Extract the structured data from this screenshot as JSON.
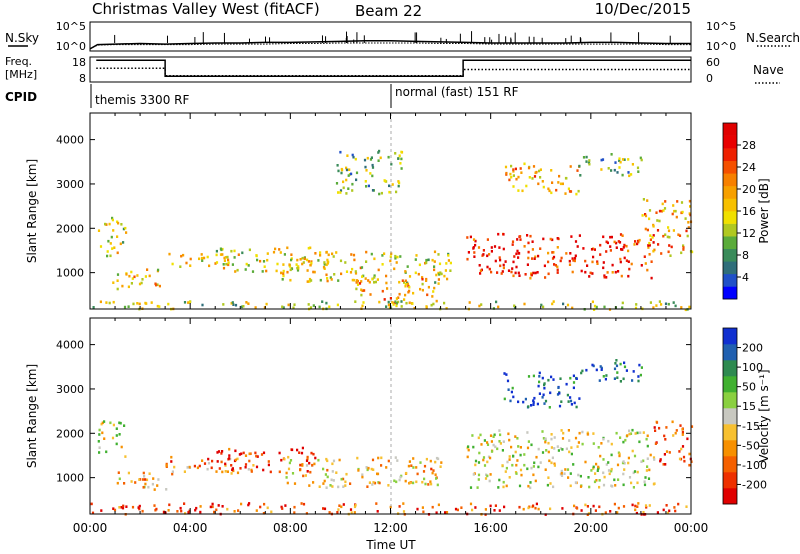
{
  "header": {
    "station": "Christmas Valley West (fitACF)",
    "beam": "Beam 22",
    "date": "10/Dec/2015"
  },
  "chart_data": [
    {
      "type": "line",
      "name": "noise",
      "left_label": "N.Sky",
      "right_label": "N.Search",
      "left_ticks": [
        "10^5",
        "10^0"
      ],
      "right_ticks": [
        "10^5",
        "10^0"
      ],
      "x": [
        0,
        0.3,
        1,
        2,
        3,
        4,
        5,
        6,
        7,
        8,
        9,
        10,
        11,
        12,
        13,
        14,
        15,
        16,
        17,
        18,
        19,
        20,
        21,
        22,
        23,
        24
      ],
      "sky_log": [
        0.2,
        1.0,
        1.1,
        1.2,
        1.1,
        1.2,
        1.3,
        1.3,
        1.4,
        1.4,
        1.5,
        1.6,
        1.7,
        1.7,
        1.6,
        1.5,
        1.4,
        1.3,
        1.3,
        1.3,
        1.3,
        1.4,
        1.4,
        1.3,
        1.2,
        1.2
      ],
      "search_log": [
        0.2,
        0.9,
        1.0,
        1.0,
        1.0,
        1.0,
        1.1,
        1.1,
        1.1,
        1.2,
        1.2,
        1.3,
        1.3,
        1.3,
        1.3,
        1.2,
        1.2,
        1.1,
        1.1,
        1.1,
        1.1,
        1.1,
        1.1,
        1.1,
        1.0,
        1.0
      ],
      "ylim": [
        0,
        5
      ]
    },
    {
      "type": "line",
      "name": "frequency",
      "left_label_1": "Freq.",
      "left_label_2": "[MHz]",
      "right_label": "Nave",
      "left_ticks": [
        "18",
        "8"
      ],
      "right_ticks": [
        "60",
        "0"
      ],
      "freq_segments": [
        {
          "x0": 0.25,
          "x1": 3.0,
          "mhz": 16.7
        },
        {
          "x0": 3.0,
          "x1": 14.9,
          "mhz": 10.3
        },
        {
          "x0": 14.9,
          "x1": 24,
          "mhz": 16.7
        }
      ],
      "nave_segments": [
        {
          "x0": 0.25,
          "x1": 3.0,
          "count": 33
        },
        {
          "x0": 3.0,
          "x1": 14.9,
          "count": 15
        },
        {
          "x0": 14.9,
          "x1": 24,
          "count": 30
        }
      ],
      "ylim_mhz": [
        8,
        18
      ],
      "ylim_nave": [
        0,
        60
      ]
    },
    {
      "type": "table",
      "name": "cpid",
      "label": "CPID",
      "entries": [
        {
          "start": 0.25,
          "text": "themis 3300 RF"
        },
        {
          "start": 12.0,
          "text": "normal (fast) 151 RF"
        }
      ]
    },
    {
      "type": "heatmap",
      "name": "power",
      "ylabel": "Slant Range [km]",
      "yticks": [
        1000,
        2000,
        3000,
        4000
      ],
      "ylim": [
        180,
        4600
      ],
      "xlim": [
        0,
        24
      ],
      "colorbar": {
        "label": "Power [dB]",
        "ticks": [
          "28",
          "24",
          "20",
          "16",
          "12",
          "8",
          "4"
        ],
        "colors": [
          "#0000ff",
          "#2050c8",
          "#2f6e7a",
          "#3a8b5a",
          "#5aab3a",
          "#b0c820",
          "#f0e000",
          "#f7c000",
          "#f7a000",
          "#f78000",
          "#f55000",
          "#ee2000",
          "#e80000",
          "#e00000"
        ]
      },
      "features": [
        {
          "t0": 0.3,
          "t1": 1.4,
          "r0": 1400,
          "r1": 2300,
          "level": 0.45
        },
        {
          "t0": 0.8,
          "t1": 2.8,
          "r0": 600,
          "r1": 1100,
          "level": 0.55
        },
        {
          "t0": 3.0,
          "t1": 6.0,
          "r0": 1150,
          "r1": 1450,
          "level": 0.5
        },
        {
          "t0": 5.0,
          "t1": 9.5,
          "r0": 1050,
          "r1": 1600,
          "level": 0.5
        },
        {
          "t0": 7.5,
          "t1": 14.5,
          "r0": 800,
          "r1": 1500,
          "level": 0.5
        },
        {
          "t0": 10.5,
          "t1": 14.0,
          "r0": 300,
          "r1": 900,
          "level": 0.6
        },
        {
          "t0": 9.8,
          "t1": 12.5,
          "r0": 2800,
          "r1": 3800,
          "level": 0.35
        },
        {
          "t0": 15.0,
          "t1": 22.5,
          "r0": 900,
          "r1": 1900,
          "level": 0.85
        },
        {
          "t0": 16.5,
          "t1": 19.5,
          "r0": 2800,
          "r1": 3500,
          "level": 0.6
        },
        {
          "t0": 19.5,
          "t1": 22.0,
          "r0": 3200,
          "r1": 3700,
          "level": 0.3
        },
        {
          "t0": 22.0,
          "t1": 24.0,
          "r0": 1400,
          "r1": 2700,
          "level": 0.6
        },
        {
          "t0": 0.0,
          "t1": 24.0,
          "r0": 190,
          "r1": 380,
          "level": 0.4
        }
      ]
    },
    {
      "type": "heatmap",
      "name": "velocity",
      "ylabel": "Slant Range [km]",
      "yticks": [
        1000,
        2000,
        3000,
        4000
      ],
      "ylim": [
        180,
        4600
      ],
      "xlim": [
        0,
        24
      ],
      "xticks": [
        "00:00",
        "04:00",
        "08:00",
        "12:00",
        "16:00",
        "20:00",
        "00:00"
      ],
      "xlabel": "Time UT",
      "colorbar": {
        "label": "Velocity [m s⁻¹]",
        "ticks": [
          "200",
          "100",
          "50",
          "15",
          "-15",
          "-50",
          "-100",
          "-200"
        ],
        "colors": [
          "#e00000",
          "#ee3000",
          "#f56000",
          "#f79000",
          "#f7c030",
          "#c8c8c0",
          "#8ad040",
          "#40b030",
          "#2e8a50",
          "#2060b0",
          "#1030d0"
        ]
      },
      "features": [
        {
          "t0": 0.3,
          "t1": 1.4,
          "r0": 1500,
          "r1": 2300,
          "level": 0.5
        },
        {
          "t0": 0.9,
          "t1": 3.0,
          "r0": 700,
          "r1": 1150,
          "level": 0.35
        },
        {
          "t0": 3.0,
          "t1": 6.5,
          "r0": 1100,
          "r1": 1500,
          "level": 0.3
        },
        {
          "t0": 5.0,
          "t1": 9.0,
          "r0": 1150,
          "r1": 1700,
          "level": 0.15
        },
        {
          "t0": 7.5,
          "t1": 14.0,
          "r0": 800,
          "r1": 1500,
          "level": 0.4
        },
        {
          "t0": 0.0,
          "t1": 24.0,
          "r0": 190,
          "r1": 450,
          "level": 0.2
        },
        {
          "t0": 15.0,
          "t1": 22.5,
          "r0": 800,
          "r1": 2100,
          "level": 0.5
        },
        {
          "t0": 16.5,
          "t1": 19.5,
          "r0": 2600,
          "r1": 3400,
          "level": 0.9
        },
        {
          "t0": 19.5,
          "t1": 22.0,
          "r0": 3200,
          "r1": 3700,
          "level": 0.85
        },
        {
          "t0": 22.5,
          "t1": 24.0,
          "r0": 1300,
          "r1": 2300,
          "level": 0.2
        }
      ]
    }
  ]
}
